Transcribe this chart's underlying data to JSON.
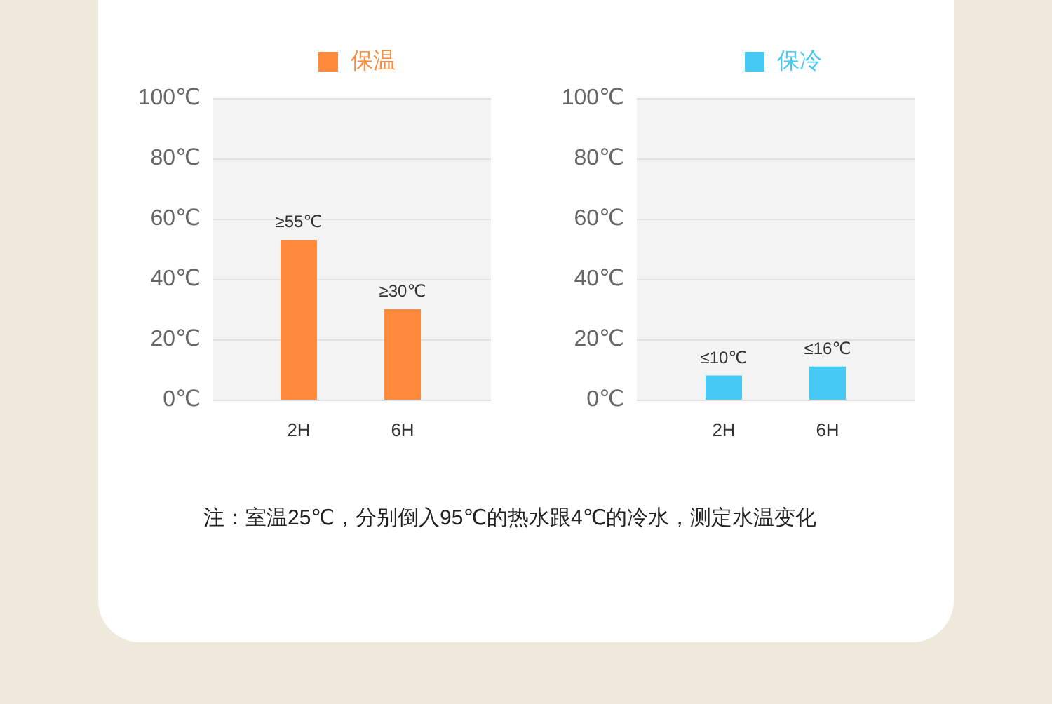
{
  "chart_data": [
    {
      "type": "bar",
      "categories": [
        "2H",
        "6H"
      ],
      "series": [
        {
          "name": "保温",
          "color": "#ff8a3b",
          "values": [
            53,
            30
          ],
          "value_labels": [
            "≥55℃",
            "≥30℃"
          ]
        }
      ],
      "ylim": [
        0,
        100
      ],
      "yticks": [
        {
          "value": 0,
          "label": "0℃"
        },
        {
          "value": 20,
          "label": "20℃"
        },
        {
          "value": 40,
          "label": "40℃"
        },
        {
          "value": 60,
          "label": "60℃"
        },
        {
          "value": 80,
          "label": "80℃"
        },
        {
          "value": 100,
          "label": "100℃"
        }
      ],
      "grid": "y",
      "legend": "top",
      "annotations": [
        "注：室温25℃，分别倒入95℃的热水跟4℃的冷水，测定水温变化"
      ]
    },
    {
      "type": "bar",
      "categories": [
        "2H",
        "6H"
      ],
      "series": [
        {
          "name": "保冷",
          "color": "#46c9f5",
          "values": [
            8,
            11
          ],
          "value_labels": [
            "≤10℃",
            "≤16℃"
          ]
        }
      ],
      "ylim": [
        0,
        100
      ],
      "yticks": [
        {
          "value": 0,
          "label": "0℃"
        },
        {
          "value": 20,
          "label": "20℃"
        },
        {
          "value": 40,
          "label": "40℃"
        },
        {
          "value": 60,
          "label": "60℃"
        },
        {
          "value": 80,
          "label": "80℃"
        },
        {
          "value": 100,
          "label": "100℃"
        }
      ],
      "grid": "y",
      "legend": "top"
    }
  ]
}
